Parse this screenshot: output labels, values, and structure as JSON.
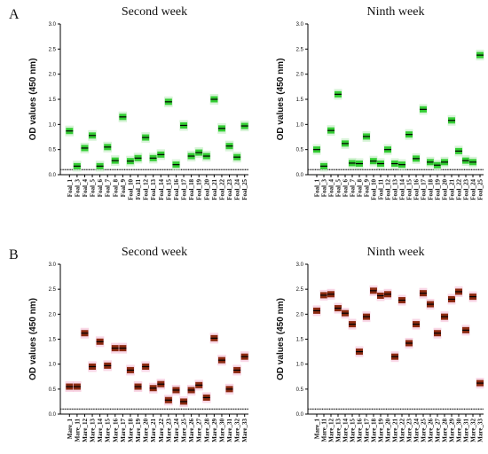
{
  "chart_data": [
    {
      "type": "scatter",
      "panel": "A",
      "title": "Second week",
      "ylabel": "OD values (450 nm)",
      "categories": [
        "Foal_1",
        "Foal_3",
        "Foal_4",
        "Foal_5",
        "Foal_6",
        "Foal_7",
        "Foal_8",
        "Foal_9",
        "Foal_10",
        "Foal_11",
        "Foal_12",
        "Foal_13",
        "Foal_14",
        "Foal_15",
        "Foal_16",
        "Foal_17",
        "Foal_18",
        "Foal_19",
        "Foal_20",
        "Foal_21",
        "Foal_22",
        "Foal_23",
        "Foal_24",
        "Foal_25"
      ],
      "values": [
        0.87,
        0.17,
        0.53,
        0.78,
        0.17,
        0.55,
        0.28,
        1.15,
        0.27,
        0.33,
        0.74,
        0.33,
        0.4,
        1.45,
        0.2,
        0.98,
        0.37,
        0.44,
        0.37,
        1.5,
        0.92,
        0.57,
        0.35,
        0.97
      ],
      "color": "#33cc33",
      "halo": "#c8f0c8",
      "threshold": 0.1,
      "ylim": [
        0,
        3
      ],
      "yticks": [
        {
          "value": 0,
          "label": "0.0"
        },
        {
          "value": 0.5,
          "label": "0.5"
        },
        {
          "value": 1,
          "label": "1.0"
        },
        {
          "value": 1.5,
          "label": "1.5"
        },
        {
          "value": 2,
          "label": "2.0"
        },
        {
          "value": 2.5,
          "label": "2.5"
        },
        {
          "value": 3,
          "label": "3.0"
        }
      ]
    },
    {
      "type": "scatter",
      "title": "Ninth week",
      "ylabel": "OD values (450 nm)",
      "categories": [
        "Foal_1",
        "Foal_3",
        "Foal_4",
        "Foal_5",
        "Foal_6",
        "Foal_7",
        "Foal_8",
        "Foal_9",
        "Foal_10",
        "Foal_11",
        "Foal_12",
        "Foal_13",
        "Foal_14",
        "Foal_15",
        "Foal_16",
        "Foal_17",
        "Foal_18",
        "Foal_19",
        "Foal_20",
        "Foal_21",
        "Foal_22",
        "Foal_23",
        "Foal_24",
        "Foal_25"
      ],
      "values": [
        0.5,
        0.17,
        0.88,
        1.6,
        0.62,
        0.23,
        0.22,
        0.76,
        0.27,
        0.22,
        0.5,
        0.22,
        0.2,
        0.8,
        0.32,
        1.3,
        0.25,
        0.19,
        0.25,
        1.08,
        0.47,
        0.28,
        0.25,
        2.38
      ],
      "color": "#33cc33",
      "halo": "#c8f0c8",
      "threshold": 0.1,
      "ylim": [
        0,
        3
      ],
      "yticks": [
        {
          "value": 0,
          "label": "0.0"
        },
        {
          "value": 0.5,
          "label": "0.5"
        },
        {
          "value": 1,
          "label": "1.0"
        },
        {
          "value": 1.5,
          "label": "1.5"
        },
        {
          "value": 2,
          "label": "2.0"
        },
        {
          "value": 2.5,
          "label": "2.5"
        },
        {
          "value": 3,
          "label": "3.0"
        }
      ]
    },
    {
      "type": "scatter",
      "panel": "B",
      "title": "Second week",
      "ylabel": "OD values (450 nm)",
      "categories": [
        "Mare_1",
        "Mare_11",
        "Mare_12",
        "Mare_13",
        "Mare_14",
        "Mare_15",
        "Mare_16",
        "Mare_17",
        "Mare_18",
        "Mare_19",
        "Mare_20",
        "Mare_21",
        "Mare_22",
        "Mare_23",
        "Mare_24",
        "Mare_25",
        "Mare_26",
        "Mare_27",
        "Mare_28",
        "Mare_29",
        "Mare_30",
        "Mare_31",
        "Mare_32",
        "Mare_33"
      ],
      "values": [
        0.55,
        0.55,
        1.62,
        0.95,
        1.45,
        0.97,
        1.32,
        1.32,
        0.88,
        0.55,
        0.95,
        0.52,
        0.6,
        0.28,
        0.48,
        0.25,
        0.48,
        0.58,
        0.33,
        1.52,
        1.08,
        0.5,
        0.88,
        1.15
      ],
      "color": "#8b2a10",
      "halo": "#f6c6dc",
      "threshold": 0.1,
      "ylim": [
        0,
        3
      ],
      "yticks": [
        {
          "value": 0,
          "label": "0.0"
        },
        {
          "value": 0.5,
          "label": "0.5"
        },
        {
          "value": 1,
          "label": "1.0"
        },
        {
          "value": 1.5,
          "label": "1.5"
        },
        {
          "value": 2,
          "label": "2.0"
        },
        {
          "value": 2.5,
          "label": "2.5"
        },
        {
          "value": 3,
          "label": "3.0"
        }
      ]
    },
    {
      "type": "scatter",
      "title": "Ninth week",
      "ylabel": "OD values (450 nm)",
      "categories": [
        "Mare_1",
        "Mare_11",
        "Mare_12",
        "Mare_13",
        "Mare_14",
        "Mare_15",
        "Mare_16",
        "Mare_17",
        "Mare_18",
        "Mare_19",
        "Mare_20",
        "Mare_21",
        "Mare_22",
        "Mare_23",
        "Mare_24",
        "Mare_25",
        "Mare_26",
        "Mare_27",
        "Mare_28",
        "Mare_29",
        "Mare_30",
        "Mare_31",
        "Mare_32",
        "Mare_33"
      ],
      "values": [
        2.07,
        2.38,
        2.4,
        2.12,
        2.02,
        1.8,
        1.25,
        1.95,
        2.47,
        2.37,
        2.4,
        1.15,
        2.28,
        1.42,
        1.8,
        2.42,
        2.2,
        1.62,
        1.95,
        2.3,
        2.45,
        1.68,
        2.35,
        0.62
      ],
      "color": "#8b2a10",
      "halo": "#f6c6dc",
      "threshold": 0.1,
      "ylim": [
        0,
        3
      ],
      "yticks": [
        {
          "value": 0,
          "label": "0.0"
        },
        {
          "value": 0.5,
          "label": "0.5"
        },
        {
          "value": 1,
          "label": "1.0"
        },
        {
          "value": 1.5,
          "label": "1.5"
        },
        {
          "value": 2,
          "label": "2.0"
        },
        {
          "value": 2.5,
          "label": "2.5"
        },
        {
          "value": 3,
          "label": "3.0"
        }
      ]
    }
  ]
}
